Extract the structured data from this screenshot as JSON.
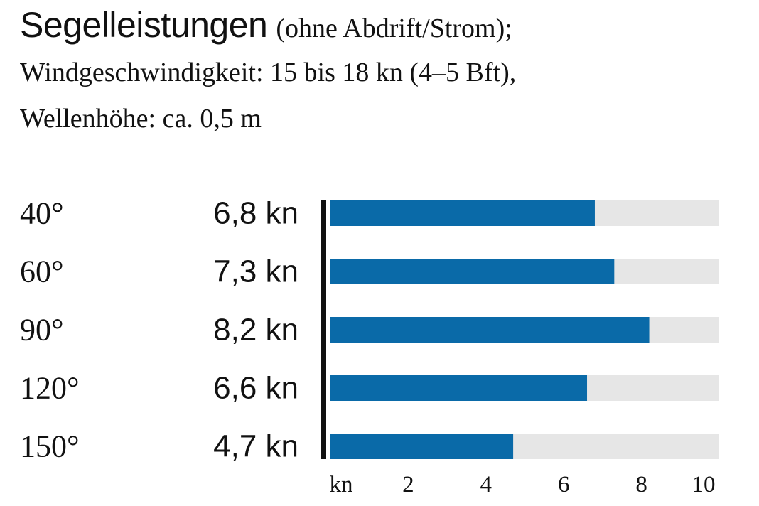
{
  "title": {
    "main": "Segelleistungen",
    "sub": "(ohne Abdrift/Strom);"
  },
  "subtitle_lines": [
    "Windgeschwindigkeit: 15 bis 18 kn (4–5 Bft),",
    "Wellenhöhe: ca. 0,5 m"
  ],
  "chart_data": {
    "type": "bar",
    "orientation": "horizontal",
    "title": "Segelleistungen",
    "categories": [
      "40°",
      "60°",
      "90°",
      "120°",
      "150°"
    ],
    "values": [
      6.8,
      7.3,
      8.2,
      6.6,
      4.7
    ],
    "value_labels": [
      "6,8 kn",
      "7,3 kn",
      "8,2 kn",
      "6,6 kn",
      "4,7 kn"
    ],
    "xlabel": "kn",
    "xticks": [
      "2",
      "4",
      "6",
      "8",
      "10"
    ],
    "xlim": [
      0,
      10
    ],
    "grid": false,
    "legend": "none"
  },
  "colors": {
    "bar": "#0a6aa8",
    "track": "#e6e6e6",
    "axis": "#111111"
  }
}
